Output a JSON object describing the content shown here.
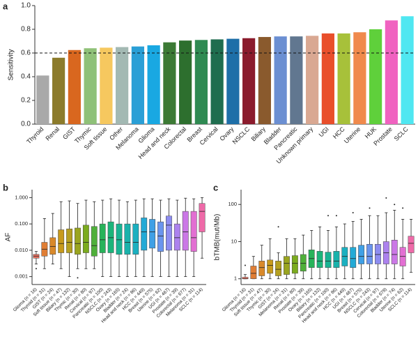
{
  "chart_data": [
    {
      "type": "bar",
      "panel_label": "a",
      "y_label": "Sensitivity",
      "categories": [
        "Thyroid",
        "Renal",
        "GIST",
        "Thymic",
        "Soft tissue",
        "Other",
        "Melanoma",
        "Glioma",
        "Head and neck",
        "Colorectal",
        "Breast",
        "Cervical",
        "Ovary",
        "NSCLC",
        "Biliary",
        "Bladder",
        "Pancreatic",
        "Unknown primary",
        "UGI",
        "HCC",
        "Uterine",
        "HUK",
        "Prostate",
        "SCLC"
      ],
      "values": [
        0.41,
        0.56,
        0.625,
        0.64,
        0.645,
        0.65,
        0.655,
        0.665,
        0.69,
        0.705,
        0.71,
        0.715,
        0.72,
        0.725,
        0.735,
        0.74,
        0.74,
        0.745,
        0.765,
        0.765,
        0.775,
        0.8,
        0.875,
        0.91
      ],
      "colors": [
        "#a9a9a9",
        "#8c7b2b",
        "#d9671f",
        "#8fc178",
        "#f6c85f",
        "#a3b9b3",
        "#2a9fd6",
        "#19a8e2",
        "#3c7a35",
        "#2d6f2e",
        "#2f8a52",
        "#1f6d4f",
        "#1e6fa8",
        "#8b1b2c",
        "#8a5a2d",
        "#6b8fd2",
        "#617790",
        "#d9a892",
        "#e94f2b",
        "#a7c13a",
        "#f08a4c",
        "#5fd03b",
        "#f062c0",
        "#4fe7f1"
      ],
      "ylim": [
        0,
        1.0
      ],
      "yticks": [
        {
          "value": 0,
          "label": "0.0"
        },
        0.2,
        0.4,
        0.6,
        0.8,
        {
          "value": 1,
          "label": "1.0"
        }
      ],
      "reference_line": 0.6
    },
    {
      "type": "box",
      "panel_label": "b",
      "y_label": "AF",
      "log_y": true,
      "categories": [
        "Glioma (n = 16)",
        "Thyroid (n = 31)",
        "GIST (n = 24)",
        "Soft tissue (n = 47)",
        "Biliary (n = 132)",
        "Thymic (n = 30)",
        "Renal (n = 80)",
        "Cervical (n = 97)",
        "Pancreatic (n = 100)",
        "NSCLC (n = 243)",
        "Ovary (n = 165)",
        "Bladder (n = 24)",
        "Head and neck (n = 86)",
        "HCC (n = 449)",
        "Breast (n = 575)",
        "Uterine (n = 62)",
        "UGI (n = 467)",
        "Prostate (n = 39)",
        "Colorectal (n = 677)",
        "Melanoma (n = 31)",
        "SCLC (n = 114)"
      ],
      "min": [
        0.003,
        0.002,
        0.003,
        0.002,
        0.001,
        0.002,
        0.002,
        0.002,
        0.001,
        0.001,
        0.001,
        0.001,
        0.001,
        0.001,
        0.001,
        0.001,
        0.001,
        0.001,
        0.001,
        0.001,
        0.005
      ],
      "q1": [
        0.005,
        0.006,
        0.007,
        0.008,
        0.008,
        0.007,
        0.008,
        0.006,
        0.008,
        0.008,
        0.007,
        0.007,
        0.007,
        0.01,
        0.012,
        0.009,
        0.01,
        0.01,
        0.01,
        0.009,
        0.05
      ],
      "median": [
        0.006,
        0.011,
        0.014,
        0.018,
        0.02,
        0.018,
        0.02,
        0.015,
        0.025,
        0.03,
        0.025,
        0.02,
        0.02,
        0.05,
        0.05,
        0.035,
        0.09,
        0.03,
        0.05,
        0.03,
        0.3
      ],
      "q3": [
        0.007,
        0.02,
        0.03,
        0.06,
        0.065,
        0.07,
        0.09,
        0.08,
        0.1,
        0.12,
        0.1,
        0.1,
        0.1,
        0.17,
        0.15,
        0.12,
        0.2,
        0.1,
        0.3,
        0.3,
        0.6
      ],
      "max": [
        0.009,
        0.16,
        0.25,
        0.7,
        0.75,
        0.6,
        0.8,
        0.7,
        0.8,
        0.9,
        0.8,
        0.7,
        0.8,
        0.9,
        0.9,
        0.8,
        0.9,
        0.8,
        0.95,
        0.9,
        1.0
      ],
      "outliers": [
        [
          0.002
        ],
        [],
        [],
        [],
        [],
        [
          0.0009
        ],
        [],
        [],
        [],
        [],
        [],
        [],
        [],
        [],
        [],
        [],
        [],
        [],
        [],
        [],
        []
      ],
      "colors": [
        "#e8705f",
        "#e07e35",
        "#d9892a",
        "#c79a1c",
        "#b5a020",
        "#9aa51f",
        "#7bab1e",
        "#4fb03a",
        "#27b35a",
        "#1cb47a",
        "#19b393",
        "#1ab2ab",
        "#1bb0c0",
        "#23aad6",
        "#3fa0e6",
        "#6a95ee",
        "#8d8cf0",
        "#ac82ee",
        "#cb78e6",
        "#e26fd2",
        "#ee6aa8"
      ],
      "ylim": [
        0.0005,
        2
      ],
      "yticks": [
        0.001,
        {
          "value": 0.01,
          "label": "0.010"
        },
        {
          "value": 0.1,
          "label": "0.100"
        },
        {
          "value": 1,
          "label": "1.000"
        }
      ]
    },
    {
      "type": "box",
      "panel_label": "c",
      "y_label": "bTMB(mut/Mb)",
      "log_y": true,
      "categories": [
        "Glioma (n = 16)",
        "Thyroid (n = 31)",
        "Soft tissue (n = 47)",
        "Thymic (n = 30)",
        "GIST (n = 24)",
        "Melanoma (n = 31)",
        "Renal (n = 80)",
        "Prostate (n = 39)",
        "Ovary (n = 165)",
        "Biliary (n = 132)",
        "Pancreatic (n = 100)",
        "Head and neck (n = 86)",
        "HCC (n = 449)",
        "UGI (n = 467)",
        "Breast (n = 575)",
        "NSCLC (n = 243)",
        "Cervical (n = 97)",
        "Colorectal (n = 678)",
        "Bladder (n = 74)",
        "Uterine (n = 62)",
        "SCLC (n = 114)"
      ],
      "min": [
        1,
        1,
        1,
        1,
        1,
        1,
        1,
        1,
        1,
        1,
        1,
        1,
        1,
        1,
        1,
        1,
        1,
        1,
        1,
        1,
        1.5
      ],
      "q1": [
        1,
        1,
        1.2,
        1.4,
        1.2,
        1.3,
        1.4,
        1.6,
        2,
        2,
        2,
        2,
        2.2,
        2,
        2.5,
        2.5,
        2.5,
        2.5,
        2.5,
        2.2,
        5
      ],
      "median": [
        1,
        1.4,
        2,
        2.3,
        1.8,
        2.6,
        2.6,
        2.6,
        3.5,
        3,
        3,
        3,
        4,
        3.5,
        4,
        4,
        4.5,
        5,
        4.5,
        4,
        9
      ],
      "q3": [
        1.1,
        2.2,
        3,
        3.2,
        3,
        4,
        4.2,
        4.5,
        6,
        5.5,
        5.2,
        5.5,
        7,
        7,
        8,
        8.5,
        8.5,
        10,
        11,
        7,
        14
      ],
      "max": [
        1.3,
        4,
        8,
        12,
        5,
        12,
        12,
        15,
        20,
        25,
        20,
        25,
        30,
        35,
        40,
        50,
        50,
        60,
        70,
        40,
        40
      ],
      "outliers": [
        [
          2.3
        ],
        [],
        [],
        [],
        [
          25
        ],
        [],
        [],
        [],
        [],
        [],
        [
          50
        ],
        [
          50
        ],
        [],
        [
          60
        ],
        [],
        [
          80
        ],
        [],
        [
          150
        ],
        [
          100
        ],
        [
          80
        ],
        []
      ],
      "colors": [
        "#e8705f",
        "#e07e35",
        "#d9892a",
        "#c79a1c",
        "#b5a020",
        "#9aa51f",
        "#7bab1e",
        "#4fb03a",
        "#27b35a",
        "#1cb47a",
        "#19b393",
        "#1ab2ab",
        "#1bb0c0",
        "#23aad6",
        "#3fa0e6",
        "#6a95ee",
        "#8d8cf0",
        "#ac82ee",
        "#cb78e6",
        "#e26fd2",
        "#ee6aa8"
      ],
      "ylim": [
        0.7,
        250
      ],
      "yticks": [
        1,
        10,
        100
      ]
    }
  ]
}
